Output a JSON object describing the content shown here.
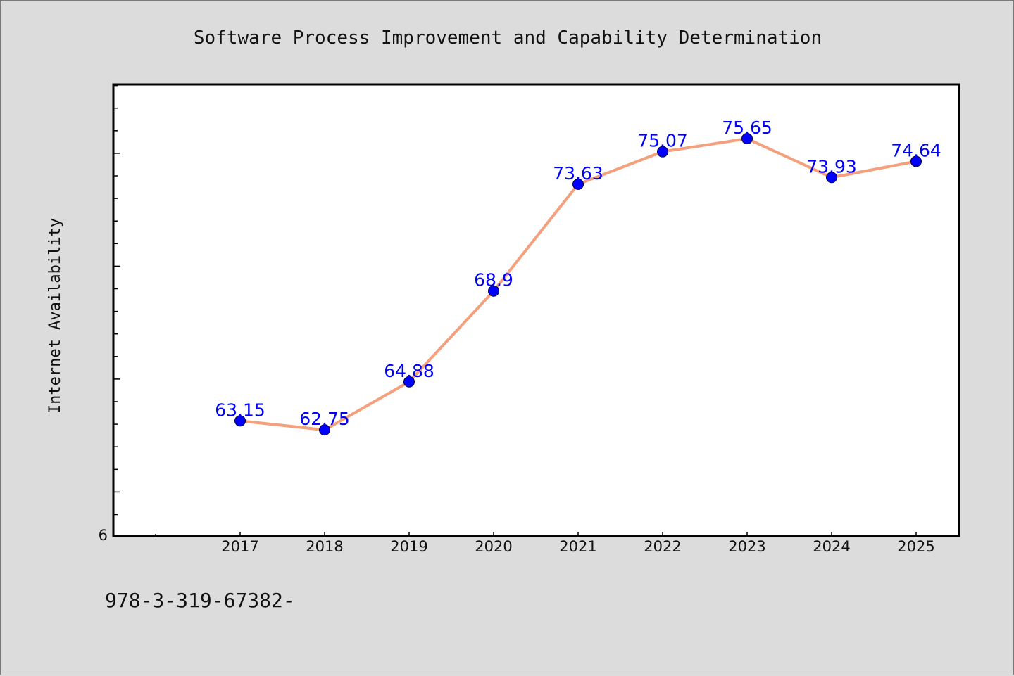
{
  "chart_data": {
    "type": "line",
    "title": "Software Process Improvement and Capability Determination",
    "xlabel": "",
    "ylabel": "Internet Availability",
    "x": [
      "2017",
      "2018",
      "2019",
      "2020",
      "2021",
      "2022",
      "2023",
      "2024",
      "2025"
    ],
    "series": [
      {
        "values": [
          63.15,
          62.75,
          64.88,
          68.9,
          73.63,
          75.07,
          75.65,
          73.93,
          74.64
        ],
        "data_labels": [
          "63.15",
          "62.75",
          "64.88",
          "68.9",
          "73.63",
          "75.07",
          "75.65",
          "73.93",
          "74.64"
        ],
        "line_color": "#f4a07c",
        "marker_color": "#0000ff"
      }
    ],
    "y_tick_label": "6",
    "ylim": [
      58.05,
      78.05
    ],
    "y_minor_step": 1,
    "y_major_step": 5,
    "grid": false,
    "legend": "none",
    "colors": {
      "background": "#dcdcdc",
      "plot_area": "#ffffff",
      "label": "#0000ff"
    }
  },
  "footer_text": "978-3-319-67382-"
}
